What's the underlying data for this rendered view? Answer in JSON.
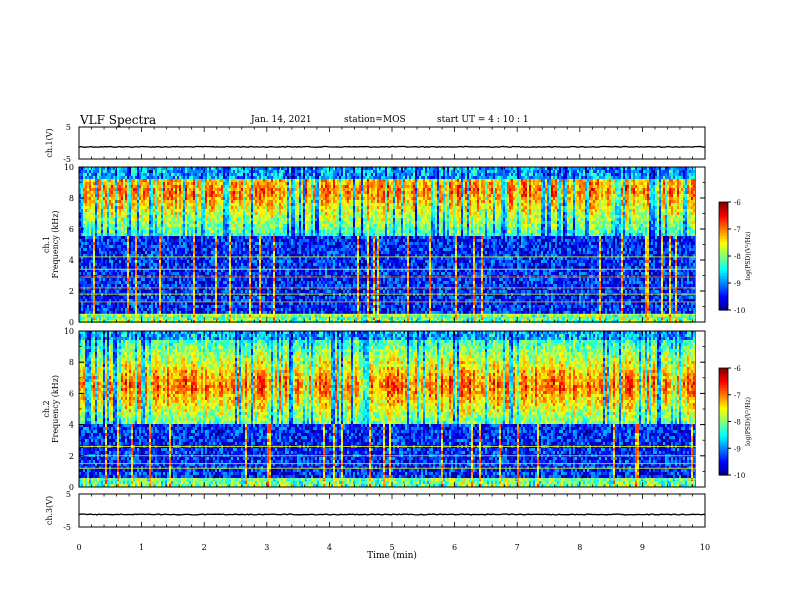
{
  "header": {
    "title": "VLF Spectra",
    "date": "Jan. 14, 2021",
    "station": "station=MOS",
    "start": "start UT =  4 : 10 : 1"
  },
  "chart_data": [
    {
      "type": "line",
      "name": "ch1-waveform",
      "ylabel": "ch.1(V)",
      "ylim": [
        -5,
        5
      ],
      "yticks": [
        "5",
        "-5"
      ],
      "xlim": [
        0,
        10
      ],
      "trace_level": -1.2
    },
    {
      "type": "heatmap",
      "name": "ch1-spectrogram",
      "ylabel_channel": "ch.1",
      "ylabel": "Frequency (kHz)",
      "ylim": [
        0,
        10
      ],
      "yticks": [
        "0",
        "2",
        "4",
        "6",
        "8",
        "10"
      ],
      "xlim": [
        0,
        9.85
      ],
      "colorbar": {
        "label": "log(PSD)(V²/Hz)",
        "range": [
          -10,
          -6
        ],
        "ticks": [
          "-6",
          "-7",
          "-8",
          "-9",
          "-10"
        ]
      },
      "band_kHz": [
        5.5,
        9.2
      ],
      "peak_kHz": 8.5,
      "lines_kHz": [
        0.3,
        0.5,
        1.3,
        1.8,
        2.2,
        2.9,
        3.4,
        4.2
      ]
    },
    {
      "type": "heatmap",
      "name": "ch2-spectrogram",
      "ylabel_channel": "ch.2",
      "ylabel": "Frequency (kHz)",
      "ylim": [
        0,
        10
      ],
      "yticks": [
        "0",
        "2",
        "4",
        "6",
        "8",
        "10"
      ],
      "xlim": [
        0,
        9.85
      ],
      "colorbar": {
        "label": "log(PSD)(V²/Hz)",
        "range": [
          -10,
          -6
        ],
        "ticks": [
          "-6",
          "-7",
          "-8",
          "-9",
          "-10"
        ]
      },
      "band_kHz": [
        4.0,
        9.5
      ],
      "peak_kHz": 6.5,
      "lines_kHz": [
        0.5,
        1.2,
        1.5,
        2.0,
        2.6
      ]
    },
    {
      "type": "line",
      "name": "ch3-waveform",
      "ylabel": "ch.3(V)",
      "ylim": [
        -5,
        5
      ],
      "yticks": [
        "5",
        "-5"
      ],
      "xlim": [
        0,
        10
      ],
      "trace_level": -1.2,
      "xlabel": "Time (min)",
      "xticks": [
        "0",
        "1",
        "2",
        "3",
        "4",
        "5",
        "6",
        "7",
        "8",
        "9",
        "10"
      ]
    }
  ]
}
